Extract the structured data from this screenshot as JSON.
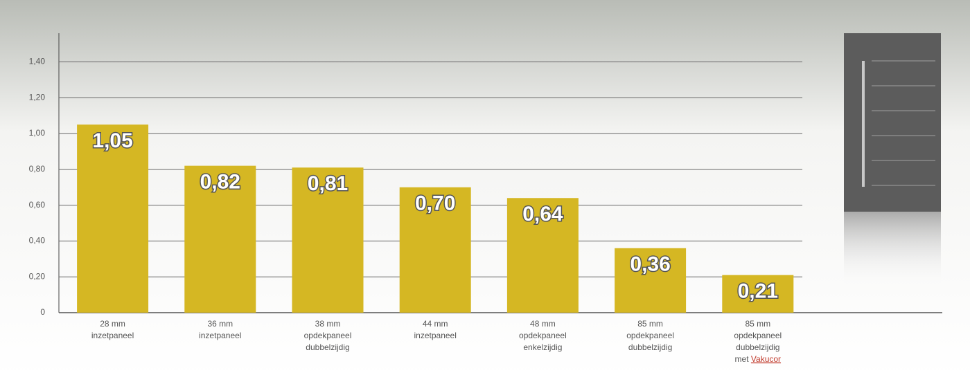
{
  "chart_data": {
    "type": "bar",
    "categories": [
      [
        "28 mm",
        "inzetpaneel"
      ],
      [
        "36 mm",
        "inzetpaneel"
      ],
      [
        "38 mm",
        "opdekpaneel",
        "dubbelzijdig"
      ],
      [
        "44 mm",
        "inzetpaneel"
      ],
      [
        "48 mm",
        "opdekpaneel",
        "enkelzijdig"
      ],
      [
        "85 mm",
        "opdekpaneel",
        "dubbelzijdig"
      ],
      [
        "85 mm",
        "opdekpaneel",
        "dubbelzijdig",
        "met"
      ]
    ],
    "category_link": "Vakucor",
    "values": [
      1.05,
      0.82,
      0.81,
      0.7,
      0.64,
      0.36,
      0.21
    ],
    "value_labels": [
      "1,05",
      "0,82",
      "0,81",
      "0,70",
      "0,64",
      "0,36",
      "0,21"
    ],
    "color": "#d5b723",
    "ylim": [
      0,
      1.56
    ],
    "yticks": [
      0,
      {
        "value": 0.2,
        "label": "0,20"
      },
      {
        "value": 0.4,
        "label": "0,40"
      },
      {
        "value": 0.6,
        "label": "0,60"
      },
      {
        "value": 0.8,
        "label": "0,80"
      },
      {
        "value": 1.0,
        "label": "1,00"
      },
      {
        "value": 1.2,
        "label": "1,20"
      },
      {
        "value": 1.4,
        "label": "1,40"
      }
    ],
    "grid": true
  }
}
